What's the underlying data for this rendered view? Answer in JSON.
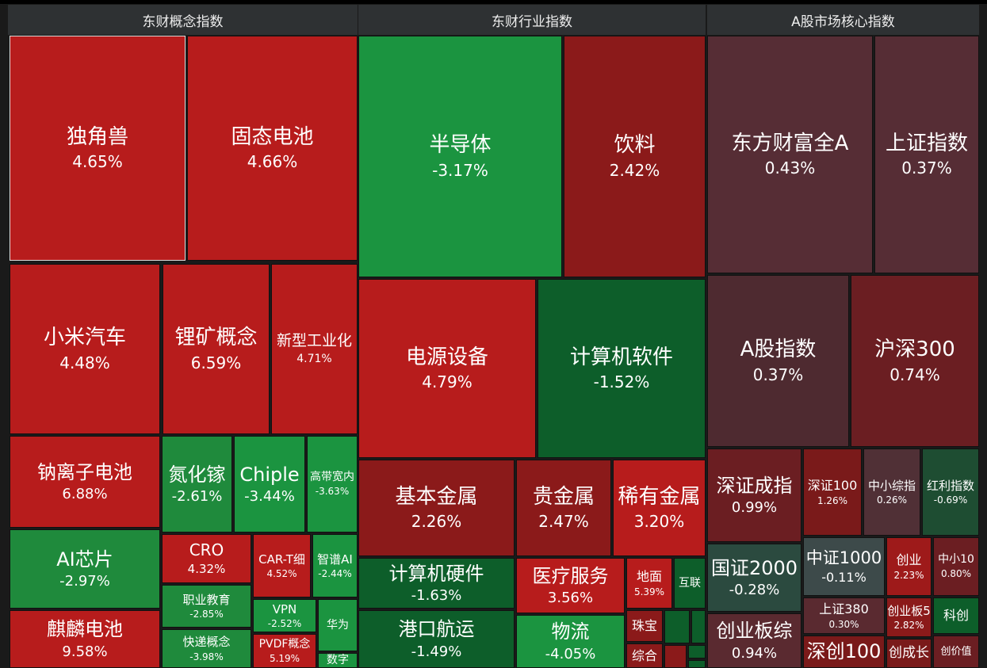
{
  "panels": [
    {
      "title": "东财概念指数",
      "tiles": [
        {
          "label": "独角兽",
          "change": "4.65%"
        },
        {
          "label": "固态电池",
          "change": "4.66%"
        },
        {
          "label": "小米汽车",
          "change": "4.48%"
        },
        {
          "label": "锂矿概念",
          "change": "6.59%"
        },
        {
          "label": "新型工业化",
          "change": "4.71%"
        },
        {
          "label": "钠离子电池",
          "change": "6.88%"
        },
        {
          "label": "氮化镓",
          "change": "-2.61%"
        },
        {
          "label": "Chiple",
          "change": "-3.44%"
        },
        {
          "label": "高带宽内",
          "change": "-3.63%"
        },
        {
          "label": "AI芯片",
          "change": "-2.97%"
        },
        {
          "label": "麒麟电池",
          "change": "9.58%"
        },
        {
          "label": "CRO",
          "change": "4.32%"
        },
        {
          "label": "职业教育",
          "change": "-2.85%"
        },
        {
          "label": "快递概念",
          "change": "-3.98%"
        },
        {
          "label": "CAR-T细",
          "change": "4.52%"
        },
        {
          "label": "智谱AI",
          "change": "-2.44%"
        },
        {
          "label": "VPN",
          "change": "-2.52%"
        },
        {
          "label": "PVDF概念",
          "change": "5.19%"
        },
        {
          "label": "华为"
        },
        {
          "label": "数字"
        }
      ]
    },
    {
      "title": "东财行业指数",
      "tiles": [
        {
          "label": "半导体",
          "change": "-3.17%"
        },
        {
          "label": "饮料",
          "change": "2.42%"
        },
        {
          "label": "电源设备",
          "change": "4.79%"
        },
        {
          "label": "计算机软件",
          "change": "-1.52%"
        },
        {
          "label": "基本金属",
          "change": "2.26%"
        },
        {
          "label": "贵金属",
          "change": "2.47%"
        },
        {
          "label": "稀有金属",
          "change": "3.20%"
        },
        {
          "label": "计算机硬件",
          "change": "-1.63%"
        },
        {
          "label": "港口航运",
          "change": "-1.49%"
        },
        {
          "label": "医疗服务",
          "change": "3.56%"
        },
        {
          "label": "物流",
          "change": "-4.05%"
        },
        {
          "label": "地面",
          "change": "5.39%"
        },
        {
          "label": "互联"
        },
        {
          "label": "珠宝"
        },
        {
          "label": "综合"
        }
      ]
    },
    {
      "title": "A股市场核心指数",
      "tiles": [
        {
          "label": "东方财富全A",
          "change": "0.43%"
        },
        {
          "label": "上证指数",
          "change": "0.37%"
        },
        {
          "label": "A股指数",
          "change": "0.37%"
        },
        {
          "label": "沪深300",
          "change": "0.74%"
        },
        {
          "label": "深证成指",
          "change": "0.99%"
        },
        {
          "label": "深证100",
          "change": "1.26%"
        },
        {
          "label": "中小综指",
          "change": "0.26%"
        },
        {
          "label": "红利指数",
          "change": "-0.69%"
        },
        {
          "label": "国证2000",
          "change": "-0.28%"
        },
        {
          "label": "创业板综",
          "change": "0.94%"
        },
        {
          "label": "中证1000",
          "change": "-0.11%"
        },
        {
          "label": "创业",
          "change": "2.23%"
        },
        {
          "label": "中小10",
          "change": "0.80%"
        },
        {
          "label": "上证380",
          "change": "0.30%"
        },
        {
          "label": "深创100"
        },
        {
          "label": "创业板5",
          "change": "2.82%"
        },
        {
          "label": "科创"
        },
        {
          "label": "创成长"
        },
        {
          "label": "创价值"
        }
      ]
    }
  ]
}
